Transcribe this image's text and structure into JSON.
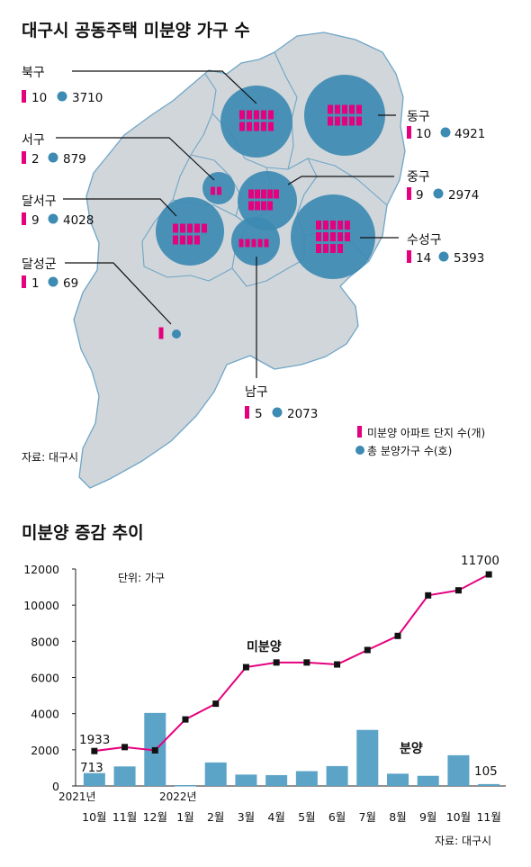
{
  "map_title": "대구시 공동주택 미분양 가구 수",
  "map_source": "자료: 대구시",
  "legend": {
    "complex": "미분양 아파트 단지 수(개)",
    "households": "총 분양가구 수(호)"
  },
  "colors": {
    "complex": "#e5007e",
    "households": "#3d8ab3",
    "map_fill": "#d1d6da",
    "map_stroke": "#6fa6c6",
    "bar": "#5ba3c7",
    "line": "#e5007e"
  },
  "districts": [
    {
      "name": "북구",
      "complexes": "10",
      "households": "3710"
    },
    {
      "name": "서구",
      "complexes": "2",
      "households": "879"
    },
    {
      "name": "달서구",
      "complexes": "9",
      "households": "4028"
    },
    {
      "name": "달성군",
      "complexes": "1",
      "households": "69"
    },
    {
      "name": "동구",
      "complexes": "10",
      "households": "4921"
    },
    {
      "name": "중구",
      "complexes": "9",
      "households": "2974"
    },
    {
      "name": "수성구",
      "complexes": "14",
      "households": "5393"
    },
    {
      "name": "남구",
      "complexes": "5",
      "households": "2073"
    }
  ],
  "chart_data": {
    "type": "bar",
    "title": "미분양 증감 추이",
    "unit_note": "단위: 가구",
    "source": "자료: 대구시",
    "categories": [
      "10월",
      "11월",
      "12월",
      "1월",
      "2월",
      "3월",
      "4월",
      "5월",
      "6월",
      "7월",
      "8월",
      "9월",
      "10월",
      "11월"
    ],
    "year_labels": [
      "2021년",
      "2022년"
    ],
    "ylim": [
      0,
      12000
    ],
    "yticks": [
      "0",
      "2000",
      "4000",
      "6000",
      "8000",
      "10000",
      "12000"
    ],
    "series": [
      {
        "name": "미분양",
        "type": "line",
        "values": [
          1933,
          2150,
          1970,
          3680,
          4550,
          6570,
          6830,
          6830,
          6720,
          7520,
          8300,
          10540,
          10820,
          11700
        ]
      },
      {
        "name": "분양",
        "type": "bar",
        "values": [
          713,
          1080,
          4040,
          50,
          1300,
          630,
          600,
          820,
          1100,
          3100,
          680,
          560,
          1700,
          105
        ]
      }
    ],
    "data_labels": {
      "line_first": "1933",
      "line_last": "11700",
      "bar_first": "713",
      "bar_last": "105"
    }
  }
}
